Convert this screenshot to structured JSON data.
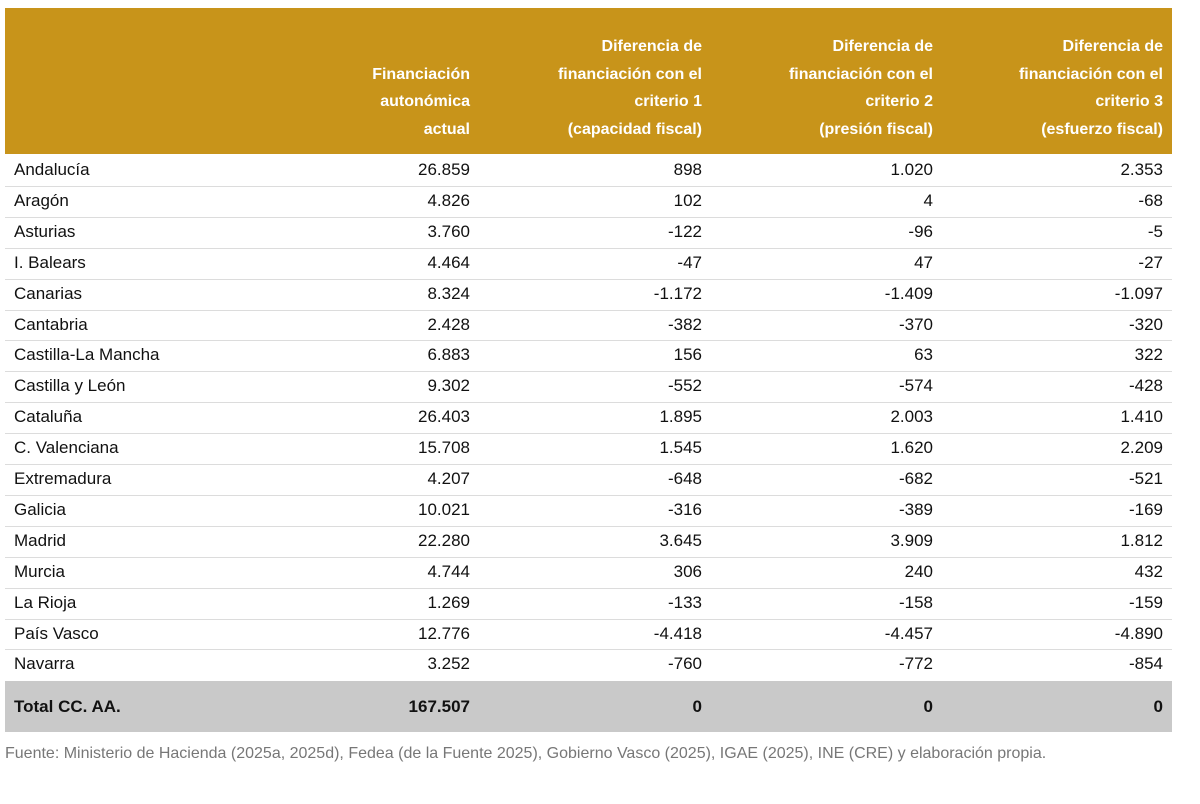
{
  "table": {
    "header": [
      [],
      [
        "Financiación",
        "autonómica",
        "actual"
      ],
      [
        "Diferencia de",
        "financiación con el",
        "criterio 1",
        "(capacidad fiscal)"
      ],
      [
        "Diferencia de",
        "financiación con el",
        "criterio 2",
        "(presión fiscal)"
      ],
      [
        "Diferencia de",
        "financiación con el",
        "criterio 3",
        "(esfuerzo fiscal)"
      ]
    ],
    "rows": [
      [
        "Andalucía",
        "26.859",
        "898",
        "1.020",
        "2.353"
      ],
      [
        "Aragón",
        "4.826",
        "102",
        "4",
        "-68"
      ],
      [
        "Asturias",
        "3.760",
        "-122",
        "-96",
        "-5"
      ],
      [
        "I. Balears",
        "4.464",
        "-47",
        "47",
        "-27"
      ],
      [
        "Canarias",
        "8.324",
        "-1.172",
        "-1.409",
        "-1.097"
      ],
      [
        "Cantabria",
        "2.428",
        "-382",
        "-370",
        "-320"
      ],
      [
        "Castilla-La Mancha",
        "6.883",
        "156",
        "63",
        "322"
      ],
      [
        "Castilla y León",
        "9.302",
        "-552",
        "-574",
        "-428"
      ],
      [
        "Cataluña",
        "26.403",
        "1.895",
        "2.003",
        "1.410"
      ],
      [
        "C. Valenciana",
        "15.708",
        "1.545",
        "1.620",
        "2.209"
      ],
      [
        "Extremadura",
        "4.207",
        "-648",
        "-682",
        "-521"
      ],
      [
        "Galicia",
        "10.021",
        "-316",
        "-389",
        "-169"
      ],
      [
        "Madrid",
        "22.280",
        "3.645",
        "3.909",
        "1.812"
      ],
      [
        "Murcia",
        "4.744",
        "306",
        "240",
        "432"
      ],
      [
        "La Rioja",
        "1.269",
        "-133",
        "-158",
        "-159"
      ],
      [
        "País Vasco",
        "12.776",
        "-4.418",
        "-4.457",
        "-4.890"
      ],
      [
        "Navarra",
        "3.252",
        "-760",
        "-772",
        "-854"
      ]
    ],
    "total": [
      "Total CC. AA.",
      "167.507",
      "0",
      "0",
      "0"
    ]
  },
  "footer": {
    "source": "Fuente: Ministerio de Hacienda (2025a, 2025d), Fedea (de la Fuente 2025), Gobierno Vasco (2025), IGAE (2025), INE (CRE) y elaboración propia."
  }
}
